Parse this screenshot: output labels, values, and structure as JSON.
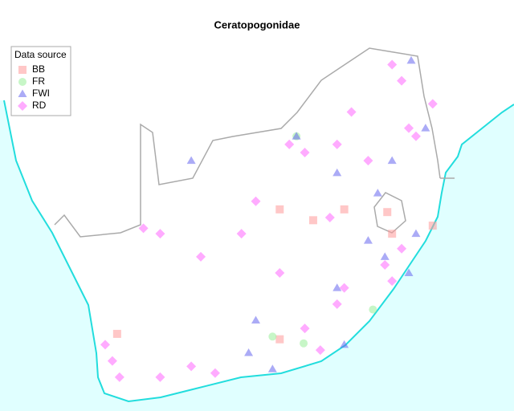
{
  "chart_data": {
    "type": "scatter",
    "title": "Ceratopogonidae",
    "legend_title": "Data source",
    "legend": "top-left",
    "xlim": [
      14.2,
      35.7
    ],
    "ylim": [
      -35.15,
      -21.15
    ],
    "series": [
      {
        "name": "BB",
        "color": "#ff9999",
        "marker": "square",
        "x": [
          25.9,
          27.3,
          28.6,
          30.4,
          32.3,
          25.9,
          19.1,
          30.6
        ],
        "y": [
          -27.7,
          -28.1,
          -27.7,
          -27.8,
          -28.3,
          -32.5,
          -32.3,
          -28.6
        ]
      },
      {
        "name": "FR",
        "color": "#99ee99",
        "marker": "circle",
        "x": [
          25.6,
          26.9,
          29.8,
          26.6
        ],
        "y": [
          -32.4,
          -32.65,
          -31.4,
          -25.0
        ]
      },
      {
        "name": "FWI",
        "color": "#6666ee",
        "marker": "triangle",
        "x": [
          28.3,
          29.6,
          30.3,
          31.3,
          28.3,
          25.6,
          24.6,
          28.6,
          31.4,
          32.0,
          30.6,
          30.0,
          22.2,
          24.9,
          31.6,
          26.6
        ],
        "y": [
          -26.35,
          -28.85,
          -29.45,
          -30.05,
          -30.6,
          -33.6,
          -33.0,
          -32.7,
          -22.2,
          -24.7,
          -25.9,
          -27.1,
          -25.9,
          -31.8,
          -28.6,
          -25.0
        ]
      },
      {
        "name": "RD",
        "color": "#ff66ff",
        "marker": "diamond",
        "x": [
          18.9,
          18.6,
          19.2,
          20.9,
          22.2,
          23.2,
          28.3,
          28.6,
          30.3,
          31.0,
          30.6,
          31.3,
          31.0,
          30.6,
          28.3,
          26.95,
          26.3,
          24.9,
          24.3,
          22.6,
          20.9,
          25.9,
          26.95,
          27.6,
          29.6,
          31.6,
          32.3,
          28.9,
          28.0,
          20.2
        ],
        "y": [
          -33.3,
          -32.7,
          -33.9,
          -33.9,
          -33.5,
          -33.75,
          -31.2,
          -30.6,
          -29.75,
          -29.15,
          -30.35,
          -24.7,
          -22.95,
          -22.35,
          -25.3,
          -25.6,
          -25.3,
          -27.4,
          -28.6,
          -29.45,
          -28.6,
          -30.05,
          -32.1,
          -32.9,
          -25.9,
          -25.0,
          -23.8,
          -24.1,
          -28.0,
          -28.4
        ]
      }
    ]
  }
}
